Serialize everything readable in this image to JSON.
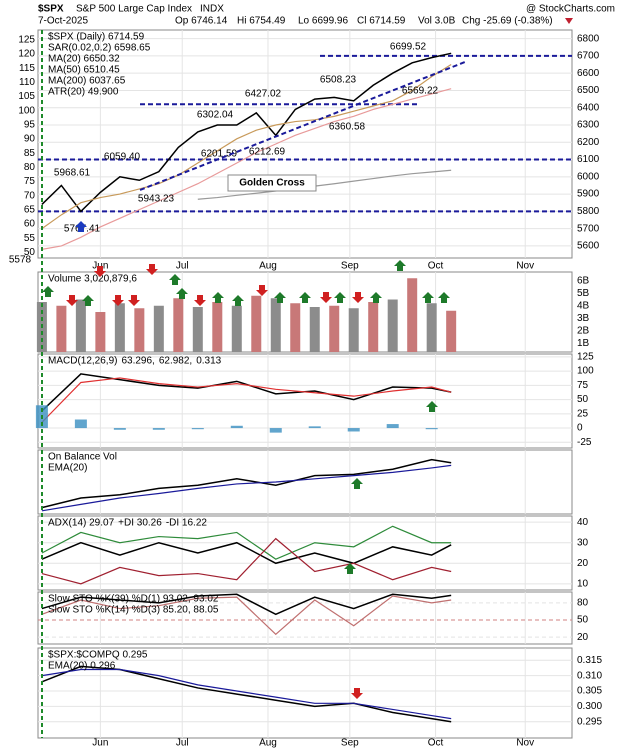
{
  "header": {
    "symbol": "$SPX",
    "name": "S&P 500 Large Cap Index",
    "exchange": "INDX",
    "source": "@ StockCharts.com",
    "date": "7-Oct-2025",
    "open": "Op 6746.14",
    "high": "Hi 6754.49",
    "low": "Lo 6699.96",
    "close": "Cl 6714.59",
    "volume": "Vol 3.0B",
    "change": "Chg -25.69 (-0.38%)"
  },
  "chart_data": [
    {
      "type": "line",
      "grid": true,
      "x": [
        0,
        5,
        10,
        15,
        20,
        25,
        30,
        35,
        40,
        45,
        50,
        55,
        60,
        65,
        70,
        75,
        80,
        85,
        90,
        95,
        100,
        105
      ],
      "xlim": [
        -1,
        136
      ],
      "xticks": [
        {
          "value": 15,
          "label": "Jun"
        },
        {
          "value": 36,
          "label": "Jul"
        },
        {
          "value": 58,
          "label": "Aug"
        },
        {
          "value": 79,
          "label": "Sep"
        },
        {
          "value": 101,
          "label": "Oct"
        },
        {
          "value": 124,
          "label": "Nov"
        }
      ],
      "ylim": [
        5530,
        6850
      ],
      "yticks": [
        5600,
        5700,
        5800,
        5900,
        6000,
        6100,
        6200,
        6300,
        6400,
        6500,
        6600,
        6700,
        6800
      ],
      "y2lim": [
        48,
        128.5
      ],
      "y2ticks": [
        50,
        55,
        60,
        65,
        70,
        75,
        80,
        85,
        90,
        95,
        100,
        105,
        110,
        115,
        120,
        125
      ],
      "series": [
        {
          "name": "$SPX (Daily) 6714.59",
          "color": "#000000",
          "values": [
            5840,
            5950,
            5800,
            5910,
            6000,
            5980,
            6030,
            6170,
            6260,
            6300,
            6300,
            6370,
            6240,
            6390,
            6450,
            6460,
            6440,
            6530,
            6600,
            6660,
            6690,
            6715
          ]
        },
        {
          "name": "MA(20) 6650.32",
          "color": "#c89a5a",
          "values": [
            5700,
            5780,
            5850,
            5880,
            5900,
            5930,
            5960,
            6010,
            6080,
            6150,
            6220,
            6270,
            6300,
            6320,
            6330,
            6350,
            6380,
            6410,
            6440,
            6500,
            6580,
            6650
          ]
        },
        {
          "name": "MA(50) 6510.45",
          "color": "#e89a9a",
          "values": [
            5580,
            5600,
            5650,
            5710,
            5760,
            5810,
            5860,
            5910,
            5960,
            6020,
            6080,
            6140,
            6190,
            6240,
            6280,
            6320,
            6350,
            6390,
            6420,
            6450,
            6480,
            6510
          ]
        },
        {
          "name": "MA(200) 6037.65",
          "color": "#999999",
          "values": [
            null,
            null,
            null,
            null,
            null,
            null,
            null,
            null,
            5870,
            5880,
            5893,
            5905,
            5918,
            5932,
            5946,
            5960,
            5975,
            5990,
            6005,
            6018,
            6028,
            6038
          ]
        }
      ],
      "legend_extra": [
        "SAR(0.02,0.2) 6598.65",
        "ATR(20) 49.900"
      ],
      "hlines": [
        6700,
        6420,
        6100,
        5800
      ],
      "annotations": [
        "6699.52",
        "6508.23",
        "6427.02",
        "6302.04",
        "6059.40",
        "5968.61",
        "6569.22",
        "6360.58",
        "6201.59",
        "6212.69",
        "5943.23",
        "5767.41",
        "5578",
        "Golden Cross"
      ]
    },
    {
      "type": "bar",
      "title": "Volume 3,020,879,6",
      "color": "#8c8c8c",
      "x": [
        0,
        5,
        10,
        15,
        20,
        25,
        30,
        35,
        40,
        45,
        50,
        55,
        60,
        65,
        70,
        75,
        80,
        85,
        90,
        95,
        100,
        105
      ],
      "values": [
        4.3,
        4.0,
        4.5,
        3.5,
        4.2,
        3.8,
        4.0,
        4.6,
        3.9,
        4.3,
        4.0,
        4.8,
        4.6,
        4.2,
        3.9,
        4.0,
        3.8,
        4.3,
        4.5,
        6.2,
        4.2,
        3.6
      ],
      "ylim": [
        0.3,
        6.7
      ],
      "yticks": [
        {
          "value": 1,
          "label": "1B"
        },
        {
          "value": 2,
          "label": "2B"
        },
        {
          "value": 3,
          "label": "3B"
        },
        {
          "value": 4,
          "label": "4B"
        },
        {
          "value": 5,
          "label": "5B"
        },
        {
          "value": 6,
          "label": "6B"
        }
      ]
    },
    {
      "type": "line",
      "title": "MACD(12,26,9)",
      "grid": true,
      "x": [
        0,
        10,
        20,
        30,
        40,
        50,
        60,
        70,
        80,
        90,
        100,
        105
      ],
      "ylim": [
        -35,
        130
      ],
      "yticks": [
        -25,
        0,
        25,
        50,
        75,
        100,
        125
      ],
      "series": [
        {
          "name": "63.296,",
          "color": "#000000",
          "values": [
            30,
            95,
            85,
            75,
            70,
            82,
            60,
            65,
            50,
            72,
            70,
            63
          ]
        },
        {
          "name": "62.982,",
          "color": "#e03030",
          "values": [
            10,
            80,
            88,
            78,
            72,
            78,
            68,
            62,
            56,
            65,
            72,
            63
          ]
        },
        {
          "name": "0.313",
          "color": "#3a8fc0",
          "kind": "bar",
          "values": [
            40,
            15,
            -3,
            -3,
            -2,
            4,
            -8,
            3,
            -6,
            7,
            -2,
            0
          ]
        }
      ]
    },
    {
      "type": "line",
      "ylim": [
        0,
        100
      ],
      "x": [
        0,
        10,
        20,
        30,
        40,
        50,
        60,
        70,
        80,
        90,
        100,
        105
      ],
      "series": [
        {
          "name": "On Balance Vol",
          "color": "#000000",
          "values": [
            10,
            25,
            30,
            40,
            45,
            55,
            45,
            60,
            62,
            70,
            85,
            80
          ]
        },
        {
          "name": "EMA(20)",
          "color": "#1a1a9a",
          "values": [
            5,
            15,
            25,
            32,
            40,
            47,
            50,
            55,
            60,
            65,
            72,
            76
          ]
        }
      ]
    },
    {
      "type": "line",
      "grid": true,
      "ylim": [
        7,
        43
      ],
      "yticks": [
        10,
        20,
        30,
        40
      ],
      "x": [
        0,
        10,
        20,
        30,
        40,
        50,
        60,
        70,
        80,
        90,
        100,
        105
      ],
      "series": [
        {
          "name": "ADX(14) 29.07",
          "color": "#000000",
          "values": [
            22,
            30,
            24,
            30,
            25,
            30,
            20,
            25,
            20,
            28,
            24,
            29
          ]
        },
        {
          "name": "+DI 30.26",
          "color": "#2e8b3a",
          "values": [
            25,
            35,
            30,
            33,
            32,
            35,
            22,
            30,
            28,
            38,
            30,
            30
          ]
        },
        {
          "name": "-DI 16.22",
          "color": "#a02030",
          "values": [
            15,
            10,
            18,
            14,
            15,
            12,
            32,
            16,
            20,
            12,
            18,
            16
          ]
        }
      ]
    },
    {
      "type": "line",
      "grid": true,
      "ylim": [
        8,
        99
      ],
      "yticks": [
        20,
        50,
        80
      ],
      "x": [
        0,
        10,
        20,
        30,
        40,
        50,
        60,
        70,
        80,
        90,
        100,
        105
      ],
      "series": [
        {
          "name": "Slow STO %K(39) %D(1) 93.02, 93.02",
          "color": "#000000",
          "values": [
            70,
            90,
            85,
            80,
            92,
            95,
            60,
            90,
            70,
            95,
            88,
            93
          ]
        },
        {
          "name": "Slow STO %K(14) %D(3) 85.20, 88.05",
          "color": "#c07070",
          "values": [
            60,
            85,
            70,
            75,
            88,
            90,
            25,
            85,
            40,
            92,
            80,
            85
          ]
        }
      ]
    },
    {
      "type": "line",
      "grid": true,
      "ylim": [
        0.2897,
        0.319
      ],
      "yticks": [
        {
          "value": 0.295,
          "label": "0.295"
        },
        {
          "value": 0.3,
          "label": "0.300"
        },
        {
          "value": 0.305,
          "label": "0.305"
        },
        {
          "value": 0.31,
          "label": "0.310"
        },
        {
          "value": 0.315,
          "label": "0.315"
        }
      ],
      "x": [
        0,
        10,
        20,
        30,
        40,
        50,
        60,
        70,
        80,
        90,
        100,
        105
      ],
      "series": [
        {
          "name": "$SPX:$COMPQ 0.295",
          "color": "#000000",
          "values": [
            0.308,
            0.313,
            0.312,
            0.309,
            0.306,
            0.304,
            0.302,
            0.3,
            0.301,
            0.298,
            0.296,
            0.295
          ]
        },
        {
          "name": "EMA(20) 0.296",
          "color": "#1a1a9a",
          "values": [
            0.31,
            0.312,
            0.312,
            0.31,
            0.307,
            0.305,
            0.303,
            0.301,
            0.301,
            0.299,
            0.297,
            0.296
          ]
        }
      ]
    }
  ]
}
